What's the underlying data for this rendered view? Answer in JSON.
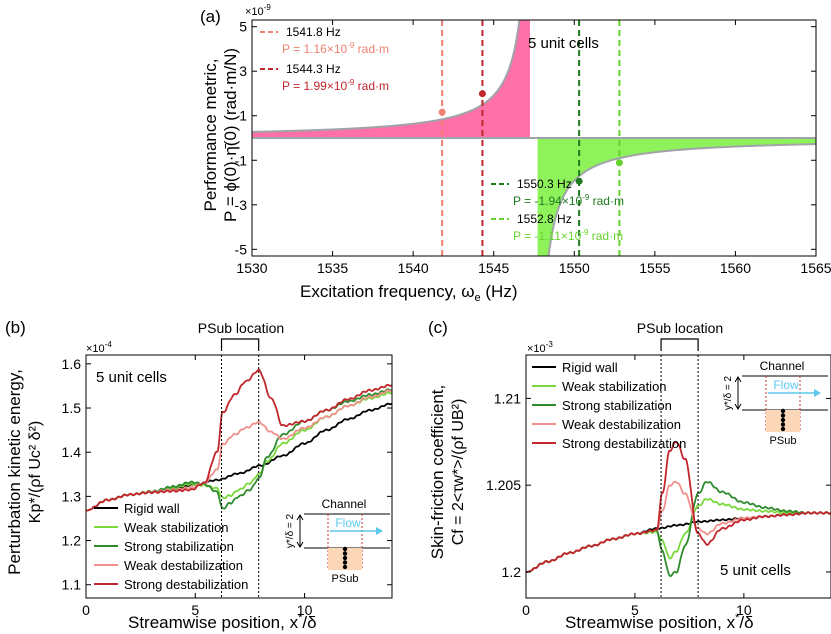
{
  "chart_data": [
    {
      "panel": "(a)",
      "type": "line",
      "title": "",
      "xlabel": "Excitation frequency, ωe (Hz)",
      "xlabel_main": "Excitation frequency, ω",
      "xlabel_sub": "e",
      "xlabel_tail": " (Hz)",
      "ylabel_line1": "Performance metric,",
      "ylabel_line2": "P = ϕ(0)·η̄(0) (rad·m/N)",
      "exponent": "×10",
      "exponent_power": "-9",
      "annotation": "5 unit cells",
      "xlim": [
        1530,
        1565
      ],
      "ylim": [
        -5.3,
        5.3
      ],
      "xticks": [
        1530,
        1535,
        1540,
        1545,
        1550,
        1555,
        1560,
        1565
      ],
      "yticks": [
        -5,
        -3,
        -1,
        1,
        3,
        5
      ],
      "resonance_hz": 1547.5,
      "curve_scale": 4.8,
      "colors": {
        "curve": "#a0a4a8",
        "positive_fill": "#ff6fa8",
        "negative_fill": "#8ef35a"
      },
      "markers": [
        {
          "freq_label": "1541.8 Hz",
          "freq": 1541.8,
          "P_label": "P = 1.16×10",
          "P_power": "-9",
          "P_unit": " rad·m",
          "P": 1.16,
          "color": "#f08070"
        },
        {
          "freq_label": "1544.3 Hz",
          "freq": 1544.3,
          "P_label": "P = 1.99×10",
          "P_power": "-9",
          "P_unit": " rad·m",
          "P": 1.99,
          "color": "#c0262c"
        },
        {
          "freq_label": "1550.3 Hz",
          "freq": 1550.3,
          "P_label": "P = -1.94×10",
          "P_power": "-9",
          "P_unit": " rad·m",
          "P": -1.94,
          "color": "#1e7a1e"
        },
        {
          "freq_label": "1552.8 Hz",
          "freq": 1552.8,
          "P_label": "P = -1.11×10",
          "P_power": "-9",
          "P_unit": " rad·m",
          "P": -1.11,
          "color": "#66d22e"
        }
      ]
    },
    {
      "panel": "(b)",
      "type": "line",
      "xlabel_main": "Streamwise position, x",
      "xlabel_sup": "*",
      "xlabel_tail": "/δ",
      "ylabel_line1": "Perturbation kinetic energy,",
      "ylabel_line2": "Kp*/(ρf Uc² δ²)",
      "exponent": "×10",
      "exponent_power": "-4",
      "annotation": "5 unit cells",
      "top_label": "PSub location",
      "xlim": [
        0,
        14
      ],
      "ylim": [
        1.07,
        1.62
      ],
      "xticks": [
        0,
        5,
        10
      ],
      "yticks": [
        1.1,
        1.2,
        1.3,
        1.4,
        1.5,
        1.6
      ],
      "psub_range": [
        6.2,
        7.9
      ],
      "inset": {
        "channel": "Channel",
        "flow": "Flow",
        "psub": "PSub",
        "ratio": "y*/δ = 2"
      },
      "series": [
        {
          "name": "Rigid wall",
          "color": "#000000",
          "x": [
            0,
            1,
            2,
            3,
            4,
            5,
            6,
            7,
            8,
            9,
            10,
            11,
            12,
            13,
            14
          ],
          "y": [
            1.268,
            1.292,
            1.304,
            1.31,
            1.318,
            1.327,
            1.337,
            1.352,
            1.37,
            1.392,
            1.42,
            1.45,
            1.475,
            1.495,
            1.51
          ]
        },
        {
          "name": "Weak stabilization",
          "color": "#7ad93a",
          "x": [
            0,
            1,
            2,
            3,
            4,
            4.8,
            5.4,
            6.0,
            6.25,
            6.6,
            7.0,
            7.5,
            7.9,
            8.3,
            9.0,
            10,
            11,
            12,
            13,
            14
          ],
          "y": [
            1.268,
            1.292,
            1.304,
            1.311,
            1.32,
            1.328,
            1.325,
            1.318,
            1.296,
            1.302,
            1.315,
            1.33,
            1.35,
            1.38,
            1.42,
            1.45,
            1.48,
            1.505,
            1.522,
            1.535
          ]
        },
        {
          "name": "Strong stabilization",
          "color": "#2e8b2e",
          "x": [
            0,
            1,
            2,
            3,
            4,
            4.8,
            5.4,
            6.0,
            6.25,
            6.6,
            7.0,
            7.5,
            7.9,
            8.3,
            9.0,
            10,
            11,
            12,
            13,
            14
          ],
          "y": [
            1.268,
            1.292,
            1.304,
            1.311,
            1.322,
            1.332,
            1.328,
            1.31,
            1.272,
            1.285,
            1.3,
            1.315,
            1.34,
            1.39,
            1.44,
            1.47,
            1.495,
            1.515,
            1.53,
            1.542
          ]
        },
        {
          "name": "Weak destabilization",
          "color": "#f0908c",
          "x": [
            0,
            1,
            2,
            3,
            4,
            4.8,
            5.4,
            6.0,
            6.25,
            6.8,
            7.3,
            7.9,
            8.5,
            9.0,
            10,
            11,
            12,
            13,
            14
          ],
          "y": [
            1.268,
            1.292,
            1.304,
            1.31,
            1.315,
            1.32,
            1.33,
            1.36,
            1.418,
            1.44,
            1.455,
            1.468,
            1.445,
            1.43,
            1.455,
            1.48,
            1.505,
            1.525,
            1.54
          ]
        },
        {
          "name": "Strong destabilization",
          "color": "#c0262c",
          "x": [
            0,
            1,
            2,
            3,
            4,
            4.8,
            5.4,
            6.0,
            6.25,
            6.8,
            7.3,
            7.9,
            8.5,
            9.0,
            10,
            11,
            12,
            13,
            14
          ],
          "y": [
            1.268,
            1.292,
            1.304,
            1.309,
            1.312,
            1.315,
            1.33,
            1.4,
            1.49,
            1.53,
            1.56,
            1.585,
            1.52,
            1.46,
            1.47,
            1.495,
            1.52,
            1.54,
            1.552
          ]
        }
      ]
    },
    {
      "panel": "(c)",
      "type": "line",
      "xlabel_main": "Streamwise position, x",
      "xlabel_sup": "*",
      "xlabel_tail": "/δ",
      "ylabel_line1": "Skin-friction coefficient,",
      "ylabel_line2": "Cf = 2<τw*>/(ρf UB²)",
      "exponent": "×10",
      "exponent_power": "-3",
      "annotation": "5 unit cells",
      "top_label": "PSub location",
      "xlim": [
        0,
        14
      ],
      "ylim": [
        1.1985,
        1.2125
      ],
      "xticks": [
        0,
        5,
        10
      ],
      "yticks": [
        1.2,
        1.205,
        1.21
      ],
      "ytick_labels": [
        "1.2",
        "1.205",
        "1.21"
      ],
      "psub_range": [
        6.2,
        7.9
      ],
      "inset": {
        "channel": "Channel",
        "flow": "Flow",
        "psub": "PSub",
        "ratio": "y*/δ = 2"
      },
      "series": [
        {
          "name": "Rigid wall",
          "color": "#000000",
          "x": [
            0,
            1,
            2,
            3,
            4,
            5,
            6,
            7,
            8,
            9,
            10,
            11,
            12,
            13,
            14
          ],
          "y": [
            1.2,
            1.2006,
            1.2011,
            1.2015,
            1.2019,
            1.2022,
            1.2025,
            1.2027,
            1.2029,
            1.203,
            1.2031,
            1.2032,
            1.2033,
            1.2034,
            1.2034
          ]
        },
        {
          "name": "Weak stabilization",
          "color": "#7ad93a",
          "x": [
            0,
            1,
            2,
            3,
            4,
            5,
            6.0,
            6.25,
            6.6,
            6.9,
            7.3,
            7.9,
            8.3,
            9,
            10,
            11,
            12,
            13,
            14
          ],
          "y": [
            1.2,
            1.2006,
            1.2011,
            1.2015,
            1.2019,
            1.2022,
            1.2023,
            1.2018,
            1.2008,
            1.2012,
            1.2022,
            1.2038,
            1.2042,
            1.2039,
            1.2036,
            1.2035,
            1.2034,
            1.2034,
            1.2034
          ]
        },
        {
          "name": "Strong stabilization",
          "color": "#2e8b2e",
          "x": [
            0,
            1,
            2,
            3,
            4,
            5,
            6.0,
            6.25,
            6.6,
            6.9,
            7.3,
            7.9,
            8.3,
            9,
            10,
            11,
            12,
            13,
            14
          ],
          "y": [
            1.2,
            1.2006,
            1.2011,
            1.2015,
            1.2019,
            1.2022,
            1.2024,
            1.2012,
            1.1998,
            1.2,
            1.2015,
            1.2045,
            1.2052,
            1.2046,
            1.204,
            1.2037,
            1.2035,
            1.2034,
            1.2034
          ]
        },
        {
          "name": "Weak destabilization",
          "color": "#f0908c",
          "x": [
            0,
            1,
            2,
            3,
            4,
            5,
            6.0,
            6.25,
            6.6,
            6.9,
            7.3,
            7.9,
            8.3,
            9,
            10,
            11,
            12,
            13,
            14
          ],
          "y": [
            1.2,
            1.2006,
            1.2011,
            1.2015,
            1.2019,
            1.2022,
            1.2024,
            1.2035,
            1.205,
            1.2052,
            1.2045,
            1.2025,
            1.2022,
            1.2028,
            1.2031,
            1.2032,
            1.2033,
            1.2034,
            1.2034
          ]
        },
        {
          "name": "Strong destabilization",
          "color": "#c0262c",
          "x": [
            0,
            1,
            2,
            3,
            4,
            5,
            6.0,
            6.25,
            6.6,
            6.9,
            7.3,
            7.9,
            8.3,
            9,
            10,
            11,
            12,
            13,
            14
          ],
          "y": [
            1.2,
            1.2006,
            1.2011,
            1.2015,
            1.2019,
            1.2022,
            1.2024,
            1.2045,
            1.207,
            1.2075,
            1.2065,
            1.2022,
            1.2016,
            1.2025,
            1.203,
            1.2032,
            1.2033,
            1.2034,
            1.2034
          ]
        }
      ]
    }
  ]
}
